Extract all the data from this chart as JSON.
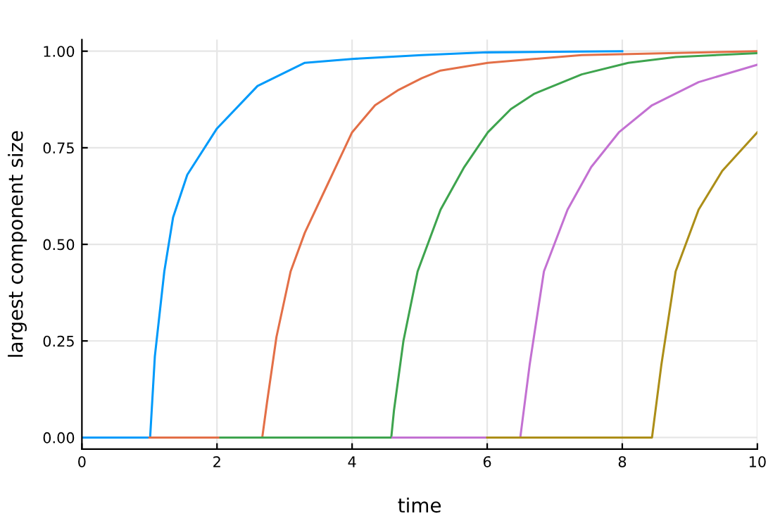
{
  "chart_data": {
    "type": "line",
    "xlabel": "time",
    "ylabel": "largest component size",
    "xlim": [
      0,
      10
    ],
    "ylim": [
      -0.03,
      1.03
    ],
    "xticks": [
      0,
      2,
      4,
      6,
      8,
      10
    ],
    "yticks": [
      {
        "value": 0,
        "label": "0.00"
      },
      {
        "value": 0.25,
        "label": "0.25"
      },
      {
        "value": 0.5,
        "label": "0.50"
      },
      {
        "value": 0.75,
        "label": "0.75"
      },
      {
        "value": 1,
        "label": "1.00"
      }
    ],
    "grid": true,
    "legend": false,
    "series": [
      {
        "color": "#009afa",
        "x": [
          0,
          1.01,
          1.08,
          1.22,
          1.35,
          1.56,
          2.0,
          2.6,
          3.3,
          4.0,
          5.03,
          6.0,
          8.0
        ],
        "values": [
          0,
          0,
          0.21,
          0.43,
          0.57,
          0.68,
          0.8,
          0.91,
          0.97,
          0.98,
          0.99,
          0.997,
          1.0
        ]
      },
      {
        "color": "#e36f47",
        "x": [
          1.0,
          2.67,
          2.74,
          2.88,
          3.09,
          3.3,
          3.65,
          4.0,
          4.34,
          4.69,
          5.03,
          5.31,
          6.01,
          7.4,
          10.0
        ],
        "values": [
          0,
          0,
          0.09,
          0.26,
          0.43,
          0.53,
          0.66,
          0.79,
          0.86,
          0.9,
          0.93,
          0.95,
          0.97,
          0.99,
          1.0
        ]
      },
      {
        "color": "#3ea44e",
        "x": [
          2.05,
          4.58,
          4.62,
          4.76,
          4.97,
          5.31,
          5.66,
          6.01,
          6.35,
          6.7,
          7.4,
          8.09,
          8.79,
          10.0
        ],
        "values": [
          0,
          0,
          0.07,
          0.25,
          0.43,
          0.59,
          0.7,
          0.79,
          0.85,
          0.89,
          0.94,
          0.97,
          0.985,
          0.995
        ]
      },
      {
        "color": "#c371d2",
        "x": [
          4.6,
          6.49,
          6.63,
          6.84,
          7.19,
          7.54,
          7.95,
          8.44,
          9.13,
          10.0
        ],
        "values": [
          0,
          0,
          0.19,
          0.43,
          0.59,
          0.7,
          0.79,
          0.86,
          0.92,
          0.965
        ]
      },
      {
        "color": "#ac8e18",
        "x": [
          6.0,
          8.44,
          8.58,
          8.79,
          9.13,
          9.48,
          10.0
        ],
        "values": [
          0,
          0,
          0.19,
          0.43,
          0.59,
          0.69,
          0.79
        ]
      }
    ]
  }
}
